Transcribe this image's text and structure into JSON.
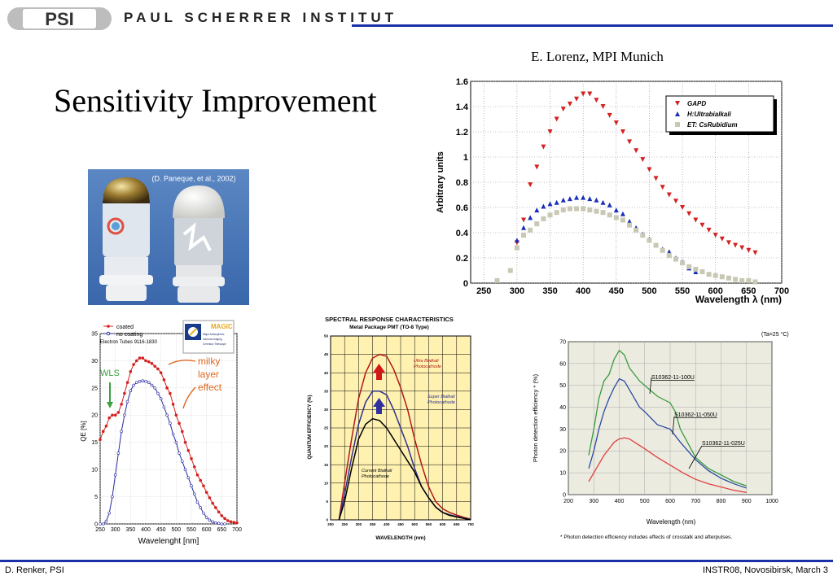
{
  "header": {
    "logo": "PSI",
    "institute": "PAUL SCHERRER INSTITUT"
  },
  "title": "Sensitivity Improvement",
  "credit": "E. Lorenz, MPI Munich",
  "photo": {
    "caption": "(D. Paneque, et al., 2002)"
  },
  "footer": {
    "left": "D. Renker, PSI",
    "right": "INSTR08, Novosibirsk, March 3"
  },
  "chart_data": [
    {
      "type": "scatter",
      "xlabel": "Wavelength λ (nm)",
      "ylabel": "Arbitrary units",
      "xlim": [
        230,
        700
      ],
      "ylim": [
        0,
        1.6
      ],
      "xticks": [
        250,
        300,
        350,
        400,
        450,
        500,
        550,
        600,
        650,
        700
      ],
      "yticks": [
        0,
        0.2,
        0.4,
        0.6,
        0.8,
        1,
        1.2,
        1.4,
        1.6
      ],
      "grid": true,
      "legend_position": "top-right",
      "series": [
        {
          "name": "GAPD",
          "marker": "triangle-down",
          "color": "#d42020",
          "x": [
            300,
            310,
            320,
            330,
            340,
            350,
            360,
            370,
            380,
            390,
            400,
            410,
            420,
            430,
            440,
            450,
            460,
            470,
            480,
            490,
            500,
            510,
            520,
            530,
            540,
            550,
            560,
            570,
            580,
            590,
            600,
            610,
            620,
            630,
            640,
            650,
            660
          ],
          "y": [
            0.32,
            0.5,
            0.78,
            0.92,
            1.08,
            1.2,
            1.3,
            1.38,
            1.42,
            1.46,
            1.5,
            1.5,
            1.45,
            1.4,
            1.33,
            1.27,
            1.2,
            1.12,
            1.05,
            0.98,
            0.9,
            0.83,
            0.76,
            0.7,
            0.65,
            0.6,
            0.55,
            0.5,
            0.46,
            0.42,
            0.38,
            0.35,
            0.32,
            0.3,
            0.28,
            0.26,
            0.24
          ]
        },
        {
          "name": "H:Ultrabialkali",
          "marker": "triangle-up",
          "color": "#1a2fb8",
          "x": [
            300,
            310,
            320,
            330,
            340,
            350,
            360,
            370,
            380,
            390,
            400,
            410,
            420,
            430,
            440,
            450,
            460,
            470,
            480,
            490,
            500,
            510,
            520,
            530,
            540,
            550,
            560,
            570
          ],
          "y": [
            0.34,
            0.44,
            0.52,
            0.58,
            0.61,
            0.63,
            0.64,
            0.66,
            0.67,
            0.68,
            0.68,
            0.67,
            0.66,
            0.64,
            0.62,
            0.58,
            0.55,
            0.49,
            0.44,
            0.39,
            0.35,
            0.3,
            0.27,
            0.25,
            0.2,
            0.17,
            0.12,
            0.09
          ]
        },
        {
          "name": "ET: CsRubidium",
          "marker": "square",
          "color": "#c8c8b4",
          "x": [
            270,
            290,
            300,
            310,
            320,
            330,
            340,
            350,
            360,
            370,
            380,
            390,
            400,
            410,
            420,
            430,
            440,
            450,
            460,
            470,
            480,
            490,
            500,
            510,
            520,
            530,
            540,
            550,
            560,
            570,
            580,
            590,
            600,
            610,
            620,
            630,
            640,
            650,
            660
          ],
          "y": [
            0.02,
            0.1,
            0.28,
            0.38,
            0.42,
            0.47,
            0.51,
            0.54,
            0.56,
            0.58,
            0.59,
            0.59,
            0.59,
            0.58,
            0.57,
            0.56,
            0.54,
            0.52,
            0.5,
            0.46,
            0.42,
            0.38,
            0.34,
            0.3,
            0.26,
            0.22,
            0.19,
            0.16,
            0.13,
            0.11,
            0.09,
            0.07,
            0.06,
            0.05,
            0.04,
            0.03,
            0.02,
            0.02,
            0.01
          ]
        }
      ]
    },
    {
      "type": "line",
      "header_lines": [
        "coated",
        "no coating",
        "Electron Tubes 9116-1830"
      ],
      "xlabel": "Wavelenght [nm]",
      "ylabel": "QE [%]",
      "xlim": [
        250,
        700
      ],
      "ylim": [
        0,
        35
      ],
      "xticks": [
        250,
        300,
        350,
        400,
        450,
        500,
        550,
        600,
        650,
        700
      ],
      "yticks": [
        0,
        5,
        10,
        15,
        20,
        25,
        30,
        35
      ],
      "annotations": [
        "WLS",
        "milky",
        "layer",
        "effect"
      ],
      "logo": "MAGIC",
      "logo_subtitle": [
        "Major Atmospheric",
        "Gamma Imaging",
        "Cerenkov Telescope"
      ],
      "series": [
        {
          "name": "coated",
          "color": "#d42020",
          "x": [
            250,
            260,
            270,
            280,
            290,
            300,
            310,
            320,
            330,
            340,
            350,
            360,
            370,
            380,
            390,
            400,
            410,
            420,
            430,
            440,
            450,
            460,
            470,
            480,
            490,
            500,
            510,
            520,
            530,
            540,
            550,
            560,
            570,
            580,
            590,
            600,
            610,
            620,
            630,
            640,
            650,
            660,
            670,
            680,
            690,
            700
          ],
          "y": [
            15.5,
            17,
            18,
            19.5,
            20,
            20,
            20.5,
            22,
            24,
            26,
            28,
            29.3,
            30,
            30.5,
            30.5,
            30,
            29.8,
            29.5,
            29,
            28.5,
            27.8,
            26.5,
            25,
            24,
            22,
            20,
            18.5,
            17,
            15,
            13.5,
            12,
            10.5,
            9,
            8,
            7,
            5.8,
            4.8,
            3.8,
            3,
            2.2,
            1.5,
            1,
            0.6,
            0.4,
            0.3,
            0.2
          ]
        },
        {
          "name": "no coating",
          "color": "#2a2aa0",
          "x": [
            250,
            260,
            270,
            280,
            290,
            300,
            310,
            320,
            330,
            340,
            350,
            360,
            370,
            380,
            390,
            400,
            410,
            420,
            430,
            440,
            450,
            460,
            470,
            480,
            490,
            500,
            510,
            520,
            530,
            540,
            550,
            560,
            570,
            580,
            590,
            600,
            610,
            620,
            630,
            640,
            650,
            660
          ],
          "y": [
            0,
            0,
            0.5,
            2,
            5,
            9,
            13,
            17,
            20,
            22.5,
            24.5,
            25.5,
            26,
            26.2,
            26.3,
            26.2,
            26,
            25.5,
            25,
            24,
            23,
            21.5,
            20,
            18.5,
            16.5,
            15,
            13,
            11.5,
            10,
            8.5,
            7,
            5.5,
            4,
            3,
            2,
            1.2,
            0.7,
            0.4,
            0.2,
            0.1,
            0,
            0
          ]
        }
      ]
    },
    {
      "type": "line",
      "title": "SPECTRAL RESPONSE CHARACTERISTICS",
      "subtitle": "Metal Package PMT (TO-8 Type)",
      "xlabel": "WAVELENGTH (nm)",
      "ylabel": "QUANTUM EFFICIENCY (%)",
      "xlim": [
        200,
        700
      ],
      "ylim": [
        0,
        50
      ],
      "xticks": [
        200,
        250,
        300,
        350,
        400,
        450,
        500,
        550,
        600,
        650,
        700
      ],
      "yticks": [
        0,
        5,
        10,
        15,
        20,
        25,
        30,
        35,
        40,
        45,
        50
      ],
      "series": [
        {
          "name": "Ultra Bialkali Photocathode",
          "label_lines": [
            "Ultra Bialkali",
            "Photocathode"
          ],
          "color": "#b01818",
          "x": [
            230,
            250,
            275,
            300,
            325,
            350,
            375,
            400,
            425,
            450,
            475,
            500,
            525,
            550,
            575,
            600,
            625,
            650,
            675,
            700
          ],
          "y": [
            0,
            10,
            22,
            33,
            40,
            44,
            45,
            44.5,
            41,
            36,
            30,
            22,
            15,
            9,
            5,
            3,
            2,
            1.3,
            0.7,
            0.2
          ]
        },
        {
          "name": "Super Bialkali Photocathode",
          "label_lines": [
            "Super Bialkali",
            "Photocathode"
          ],
          "color": "#303090",
          "x": [
            230,
            250,
            275,
            300,
            325,
            350,
            375,
            400,
            425,
            450,
            475,
            500,
            525,
            550,
            575,
            600,
            625,
            650,
            675,
            700
          ],
          "y": [
            0,
            7,
            17,
            26,
            32,
            35,
            35,
            34,
            30,
            25,
            20,
            14,
            9,
            6,
            3.5,
            2,
            1.4,
            0.9,
            0.5,
            0.1
          ]
        },
        {
          "name": "Current Bialkali Photocathode",
          "label_lines": [
            "Current Bialkali",
            "Photocathode"
          ],
          "color": "#000000",
          "x": [
            230,
            250,
            275,
            300,
            325,
            350,
            375,
            400,
            425,
            450,
            475,
            500,
            525,
            550,
            575,
            600,
            625,
            650,
            675,
            700
          ],
          "y": [
            0,
            5,
            14,
            22,
            26,
            27.5,
            27,
            25,
            22,
            19,
            16,
            13,
            9,
            6,
            3.5,
            2,
            1.2,
            0.8,
            0.4,
            0
          ]
        }
      ]
    },
    {
      "type": "line",
      "condition": "(Ta=25 °C)",
      "xlabel": "Wavelength (nm)",
      "ylabel": "Photon detection efficiency * (%)",
      "footnote": "* Photon detection efficiency includes effects of crosstalk and afterpulses.",
      "xlim": [
        200,
        1000
      ],
      "ylim": [
        0,
        70
      ],
      "xticks": [
        200,
        300,
        400,
        500,
        600,
        700,
        800,
        900,
        1000
      ],
      "yticks": [
        0,
        10,
        20,
        30,
        40,
        50,
        60,
        70
      ],
      "series": [
        {
          "name": "S10362-11-100U",
          "color": "#3a9a40",
          "x": [
            280,
            300,
            320,
            340,
            360,
            380,
            400,
            420,
            440,
            460,
            480,
            500,
            550,
            600,
            620,
            640,
            700,
            750,
            800,
            850,
            900
          ],
          "y": [
            18,
            30,
            44,
            52,
            55,
            62,
            66,
            64,
            58,
            55,
            52,
            50,
            45,
            42,
            38,
            30,
            17,
            12,
            9,
            6,
            4
          ]
        },
        {
          "name": "S10362-11-050U",
          "color": "#2a4aa0",
          "x": [
            280,
            300,
            320,
            340,
            360,
            380,
            400,
            420,
            440,
            460,
            480,
            500,
            550,
            600,
            620,
            640,
            700,
            750,
            800,
            850,
            900
          ],
          "y": [
            12,
            20,
            30,
            38,
            44,
            49,
            53,
            52,
            48,
            44,
            40,
            38,
            32,
            30,
            27,
            24,
            16,
            11,
            7.5,
            5,
            3
          ]
        },
        {
          "name": "S10362-11-025U",
          "color": "#e04040",
          "x": [
            280,
            300,
            320,
            340,
            360,
            380,
            400,
            420,
            440,
            460,
            480,
            500,
            550,
            600,
            650,
            700,
            750,
            800,
            850,
            900
          ],
          "y": [
            6,
            10,
            14,
            18,
            21,
            24,
            25.5,
            26,
            25.5,
            24,
            22.5,
            21,
            17,
            13.5,
            10,
            7,
            5,
            3.5,
            2,
            1
          ]
        }
      ]
    }
  ]
}
